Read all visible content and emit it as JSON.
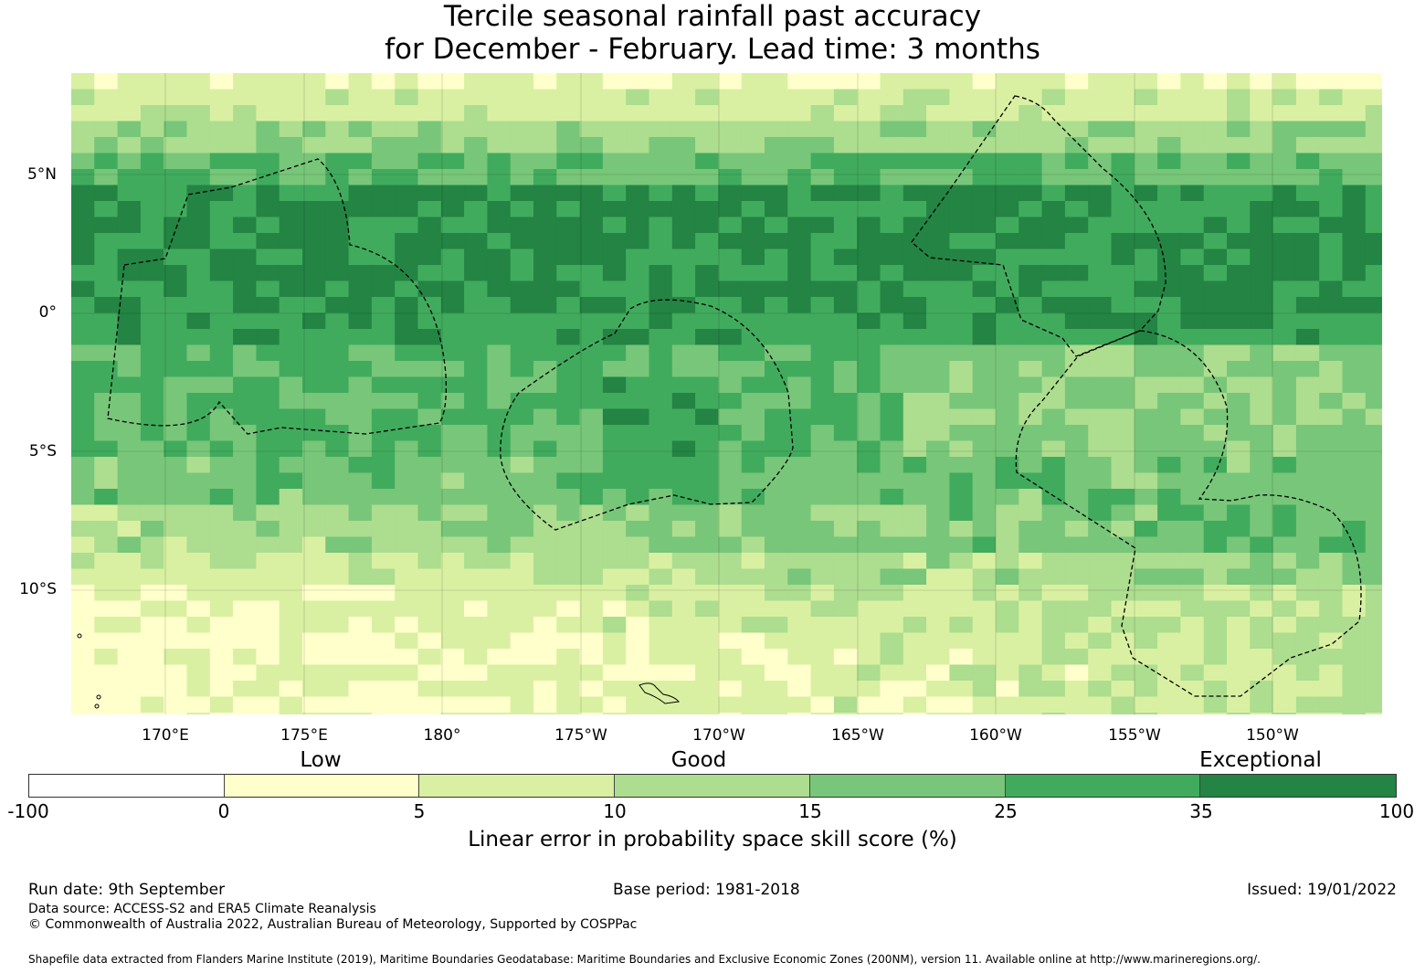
{
  "title": {
    "line1": "Tercile seasonal rainfall past accuracy",
    "line2": "for December - February. Lead time: 3 months"
  },
  "map": {
    "lat_labels": [
      "5°N",
      "0°",
      "5°S",
      "10°S"
    ],
    "lon_labels": [
      "170°E",
      "175°E",
      "180°",
      "175°W",
      "170°W",
      "165°W",
      "160°W",
      "155°W",
      "150°W"
    ],
    "base_color": "#78c679"
  },
  "legend": {
    "categories": [
      "Low",
      "Good",
      "Exceptional"
    ],
    "ticks": [
      "-100",
      "0",
      "5",
      "10",
      "15",
      "25",
      "35",
      "100"
    ],
    "colors": [
      "#ffffff",
      "#ffffcc",
      "#d9f0a3",
      "#addd8e",
      "#78c679",
      "#41ab5d",
      "#238443"
    ],
    "label": "Linear error in probability space skill score (%)"
  },
  "footer": {
    "run_date": "Run date: 9th September",
    "base_period": "Base period: 1981-2018",
    "issued": "Issued: 19/01/2022",
    "data_source": "Data source: ACCESS-S2 and ERA5 Climate Reanalysis",
    "copyright": "© Commonwealth of Australia 2022, Australian Bureau of Meteorology, Supported by COSPPac",
    "shapefile": "Shapefile data extracted from Flanders Marine Institute (2019), Maritime Boundaries Geodatabase: Maritime Boundaries and Exclusive Economic Zones (200NM), version 11. Available online at http://www.marineregions.org/."
  }
}
